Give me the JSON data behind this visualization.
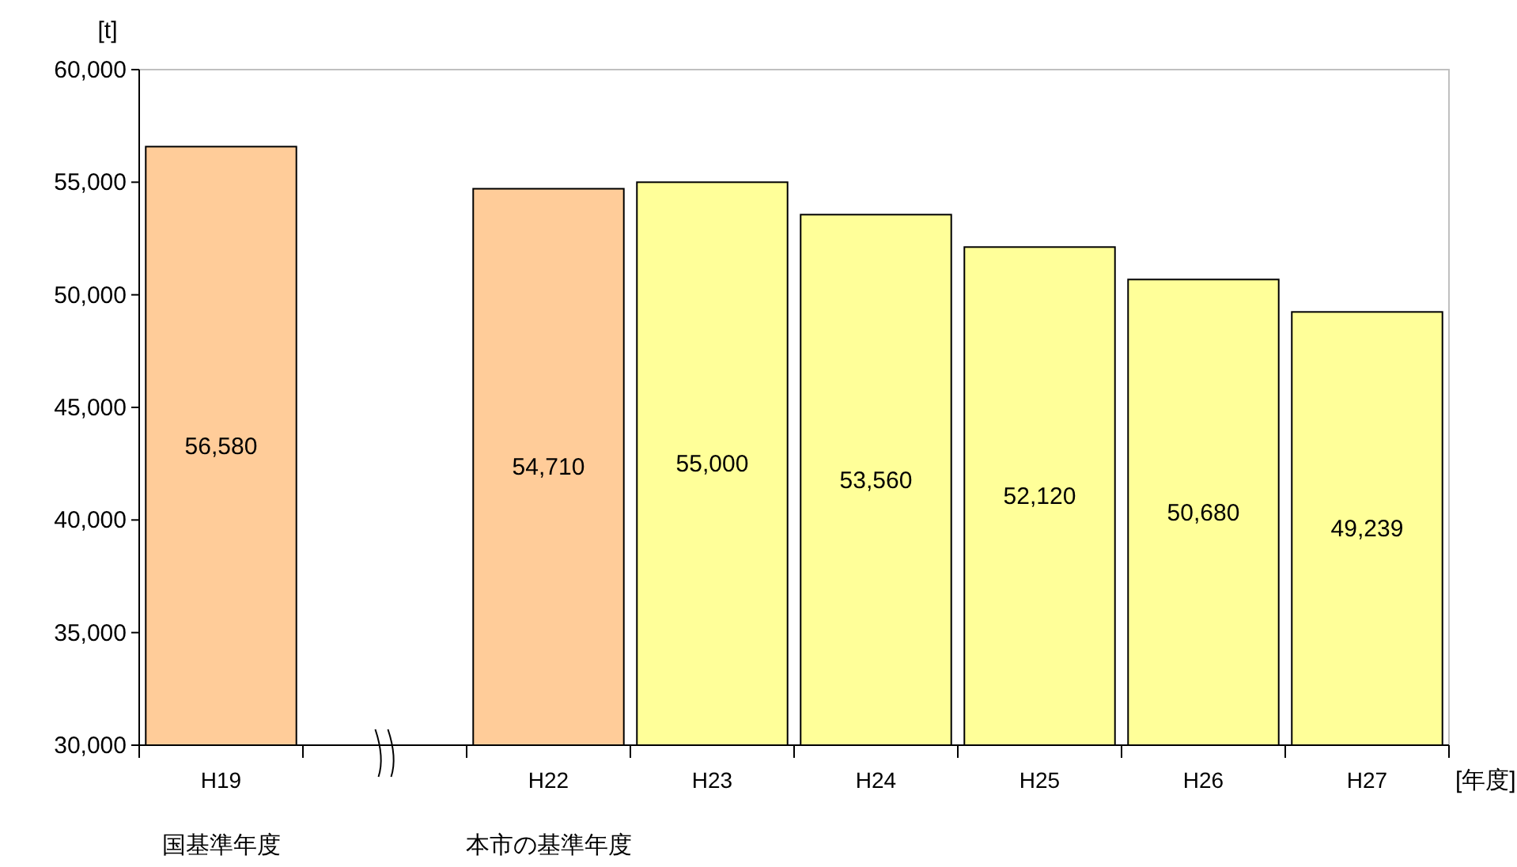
{
  "chart_data": {
    "type": "bar",
    "ylabel": "[t]",
    "xlabel": "[年度]",
    "categories": [
      "H19",
      null,
      "H22",
      "H23",
      "H24",
      "H25",
      "H26",
      "H27"
    ],
    "values": [
      56580,
      null,
      54710,
      55000,
      53560,
      52120,
      50680,
      49239
    ],
    "colors": [
      "#ffcc99",
      null,
      "#ffcc99",
      "#ffff99",
      "#ffff99",
      "#ffff99",
      "#ffff99",
      "#ffff99"
    ],
    "ylim": [
      30000,
      60000
    ],
    "yticks": [
      {
        "value": 30000,
        "label": "30,000"
      },
      {
        "value": 35000,
        "label": "35,000"
      },
      {
        "value": 40000,
        "label": "40,000"
      },
      {
        "value": 45000,
        "label": "45,000"
      },
      {
        "value": 50000,
        "label": "50,000"
      },
      {
        "value": 55000,
        "label": "55,000"
      },
      {
        "value": 60000,
        "label": "60,000"
      }
    ],
    "value_labels": [
      "56,580",
      null,
      "54,710",
      "55,000",
      "53,560",
      "52,120",
      "50,680",
      "49,239"
    ],
    "grid": false,
    "annotations": [
      "国基準年度",
      "本市の基準年度"
    ]
  }
}
